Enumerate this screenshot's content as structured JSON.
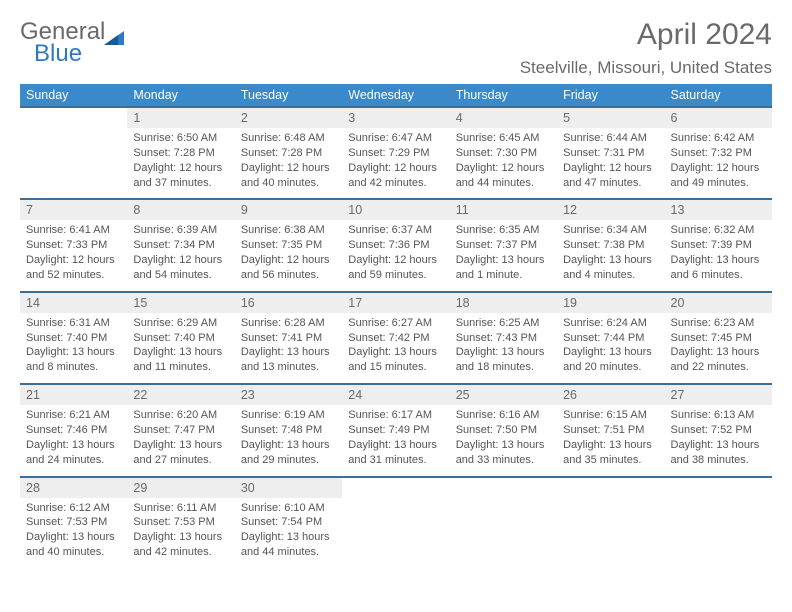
{
  "brand": {
    "word1": "General",
    "word2": "Blue",
    "color1": "#6a6a6a",
    "color2": "#2f79bf"
  },
  "header": {
    "month_title": "April 2024",
    "location": "Steelville, Missouri, United States"
  },
  "theme": {
    "header_bg": "#3a89ca",
    "header_fg": "#ffffff",
    "daynum_bg": "#eeeeee",
    "border_top": "#3a6f9a",
    "text_color": "#555555"
  },
  "weekdays": [
    "Sunday",
    "Monday",
    "Tuesday",
    "Wednesday",
    "Thursday",
    "Friday",
    "Saturday"
  ],
  "weeks": [
    {
      "nums": [
        "",
        "1",
        "2",
        "3",
        "4",
        "5",
        "6"
      ],
      "cells": [
        null,
        {
          "sunrise": "6:50 AM",
          "sunset": "7:28 PM",
          "day_h": 12,
          "day_m": 37
        },
        {
          "sunrise": "6:48 AM",
          "sunset": "7:28 PM",
          "day_h": 12,
          "day_m": 40
        },
        {
          "sunrise": "6:47 AM",
          "sunset": "7:29 PM",
          "day_h": 12,
          "day_m": 42
        },
        {
          "sunrise": "6:45 AM",
          "sunset": "7:30 PM",
          "day_h": 12,
          "day_m": 44
        },
        {
          "sunrise": "6:44 AM",
          "sunset": "7:31 PM",
          "day_h": 12,
          "day_m": 47
        },
        {
          "sunrise": "6:42 AM",
          "sunset": "7:32 PM",
          "day_h": 12,
          "day_m": 49
        }
      ]
    },
    {
      "nums": [
        "7",
        "8",
        "9",
        "10",
        "11",
        "12",
        "13"
      ],
      "cells": [
        {
          "sunrise": "6:41 AM",
          "sunset": "7:33 PM",
          "day_h": 12,
          "day_m": 52
        },
        {
          "sunrise": "6:39 AM",
          "sunset": "7:34 PM",
          "day_h": 12,
          "day_m": 54
        },
        {
          "sunrise": "6:38 AM",
          "sunset": "7:35 PM",
          "day_h": 12,
          "day_m": 56
        },
        {
          "sunrise": "6:37 AM",
          "sunset": "7:36 PM",
          "day_h": 12,
          "day_m": 59
        },
        {
          "sunrise": "6:35 AM",
          "sunset": "7:37 PM",
          "day_h": 13,
          "day_m": 1
        },
        {
          "sunrise": "6:34 AM",
          "sunset": "7:38 PM",
          "day_h": 13,
          "day_m": 4
        },
        {
          "sunrise": "6:32 AM",
          "sunset": "7:39 PM",
          "day_h": 13,
          "day_m": 6
        }
      ]
    },
    {
      "nums": [
        "14",
        "15",
        "16",
        "17",
        "18",
        "19",
        "20"
      ],
      "cells": [
        {
          "sunrise": "6:31 AM",
          "sunset": "7:40 PM",
          "day_h": 13,
          "day_m": 8
        },
        {
          "sunrise": "6:29 AM",
          "sunset": "7:40 PM",
          "day_h": 13,
          "day_m": 11
        },
        {
          "sunrise": "6:28 AM",
          "sunset": "7:41 PM",
          "day_h": 13,
          "day_m": 13
        },
        {
          "sunrise": "6:27 AM",
          "sunset": "7:42 PM",
          "day_h": 13,
          "day_m": 15
        },
        {
          "sunrise": "6:25 AM",
          "sunset": "7:43 PM",
          "day_h": 13,
          "day_m": 18
        },
        {
          "sunrise": "6:24 AM",
          "sunset": "7:44 PM",
          "day_h": 13,
          "day_m": 20
        },
        {
          "sunrise": "6:23 AM",
          "sunset": "7:45 PM",
          "day_h": 13,
          "day_m": 22
        }
      ]
    },
    {
      "nums": [
        "21",
        "22",
        "23",
        "24",
        "25",
        "26",
        "27"
      ],
      "cells": [
        {
          "sunrise": "6:21 AM",
          "sunset": "7:46 PM",
          "day_h": 13,
          "day_m": 24
        },
        {
          "sunrise": "6:20 AM",
          "sunset": "7:47 PM",
          "day_h": 13,
          "day_m": 27
        },
        {
          "sunrise": "6:19 AM",
          "sunset": "7:48 PM",
          "day_h": 13,
          "day_m": 29
        },
        {
          "sunrise": "6:17 AM",
          "sunset": "7:49 PM",
          "day_h": 13,
          "day_m": 31
        },
        {
          "sunrise": "6:16 AM",
          "sunset": "7:50 PM",
          "day_h": 13,
          "day_m": 33
        },
        {
          "sunrise": "6:15 AM",
          "sunset": "7:51 PM",
          "day_h": 13,
          "day_m": 35
        },
        {
          "sunrise": "6:13 AM",
          "sunset": "7:52 PM",
          "day_h": 13,
          "day_m": 38
        }
      ]
    },
    {
      "nums": [
        "28",
        "29",
        "30",
        "",
        "",
        "",
        ""
      ],
      "cells": [
        {
          "sunrise": "6:12 AM",
          "sunset": "7:53 PM",
          "day_h": 13,
          "day_m": 40
        },
        {
          "sunrise": "6:11 AM",
          "sunset": "7:53 PM",
          "day_h": 13,
          "day_m": 42
        },
        {
          "sunrise": "6:10 AM",
          "sunset": "7:54 PM",
          "day_h": 13,
          "day_m": 44
        },
        null,
        null,
        null,
        null
      ]
    }
  ],
  "labels": {
    "sunrise": "Sunrise:",
    "sunset": "Sunset:",
    "daylight": "Daylight:",
    "hours": "hours",
    "and": "and",
    "minutes": "minutes.",
    "minute": "minute."
  }
}
